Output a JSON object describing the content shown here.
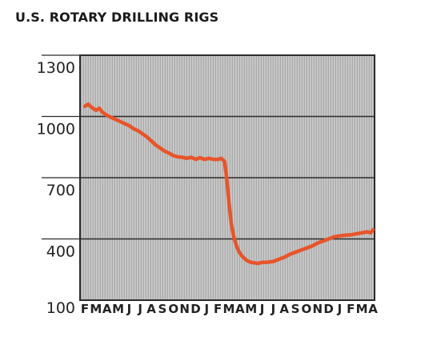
{
  "chart_data": {
    "type": "line",
    "title": "U.S. ROTARY DRILLING RIGS",
    "xlabel": "",
    "ylabel": "",
    "ylim": [
      100,
      1300
    ],
    "yticks": [
      "1300",
      "1000",
      "700",
      "400",
      "100"
    ],
    "categories": [
      "F",
      "M",
      "A",
      "M",
      "J",
      "J",
      "A",
      "S",
      "O",
      "N",
      "D",
      "J",
      "F",
      "M",
      "A",
      "M",
      "J",
      "J",
      "A",
      "S",
      "O",
      "N",
      "D",
      "J",
      "F",
      "M",
      "A"
    ],
    "grid": true,
    "colors": {
      "line": "#e8542a",
      "plot_bg": "#b4b4b4",
      "grid": "#2b2b2b"
    },
    "series": [
      {
        "x": [
          0,
          0.3,
          0.6,
          1,
          1.3,
          1.6,
          2,
          2.4,
          2.8,
          3.2,
          3.6,
          4,
          4.4,
          4.8,
          5.2,
          5.6,
          6,
          6.4,
          6.8,
          7.2,
          7.6,
          8,
          8.4,
          8.8,
          9.2,
          9.6,
          10,
          10.4,
          10.8,
          11.2,
          11.6,
          12,
          12.3,
          12.6,
          12.8,
          13,
          13.2,
          13.4,
          13.6,
          13.8,
          14,
          14.2,
          14.4,
          14.6,
          14.8,
          15,
          15.3,
          15.6,
          16,
          16.5,
          17,
          17.5,
          18,
          18.5,
          19,
          19.5,
          20,
          20.5,
          21,
          21.5,
          22,
          22.5,
          23,
          23.5,
          24,
          24.5,
          25,
          25.5,
          25.8,
          26
        ],
        "values": [
          1050,
          1060,
          1045,
          1030,
          1040,
          1020,
          1005,
          995,
          985,
          975,
          965,
          955,
          940,
          930,
          915,
          900,
          880,
          860,
          845,
          830,
          820,
          808,
          802,
          800,
          795,
          800,
          790,
          798,
          790,
          795,
          790,
          790,
          795,
          780,
          700,
          580,
          480,
          420,
          380,
          350,
          330,
          315,
          305,
          295,
          290,
          285,
          283,
          280,
          285,
          286,
          290,
          300,
          310,
          325,
          335,
          345,
          355,
          365,
          380,
          390,
          400,
          410,
          415,
          418,
          420,
          425,
          430,
          435,
          430,
          445
        ]
      }
    ]
  }
}
